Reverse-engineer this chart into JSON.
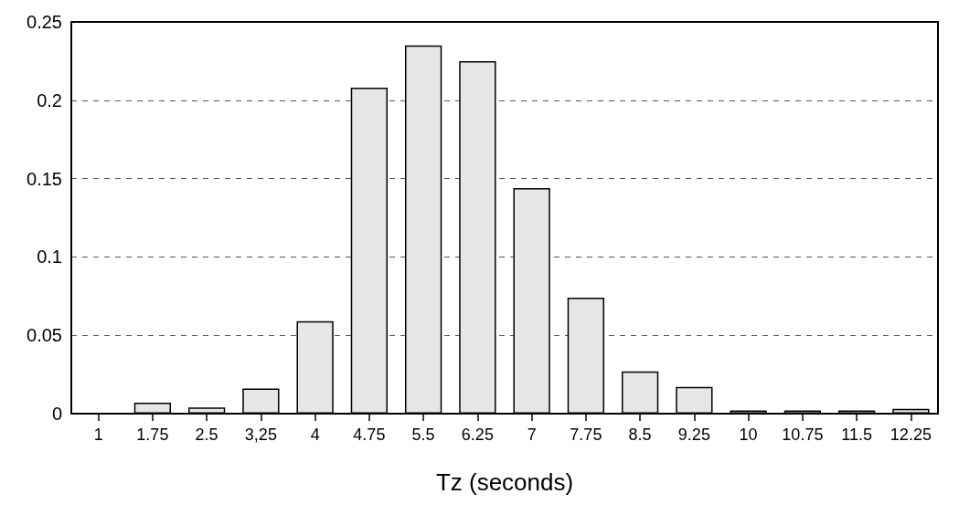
{
  "chart_data": {
    "type": "bar",
    "xlabel": "Tz (seconds)",
    "categories": [
      "1",
      "1.75",
      "2.5",
      "3,25",
      "4",
      "4.75",
      "5.5",
      "6.25",
      "7",
      "7.75",
      "8.5",
      "9.25",
      "10",
      "10.75",
      "11.5",
      "12.25"
    ],
    "values": [
      0,
      0.007,
      0.004,
      0.016,
      0.059,
      0.208,
      0.235,
      0.225,
      0.144,
      0.074,
      0.027,
      0.017,
      0.002,
      0.002,
      0.002,
      0.003
    ],
    "color": "#e6e6e6",
    "ylim": [
      0,
      0.25
    ],
    "yticks": [
      0,
      0.05,
      0.1,
      0.15,
      0.2,
      0.25
    ],
    "grid": "y"
  }
}
